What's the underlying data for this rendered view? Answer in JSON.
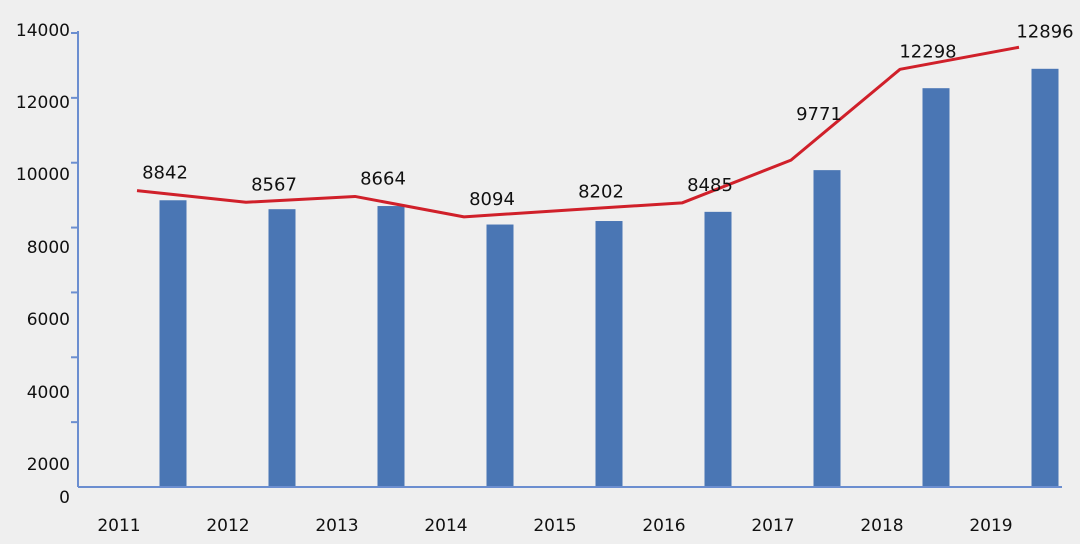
{
  "chart_data": {
    "type": "bar",
    "categories": [
      "2011",
      "2012",
      "2013",
      "2014",
      "2015",
      "2016",
      "2017",
      "2018",
      "2019"
    ],
    "values": [
      8842,
      8567,
      8664,
      8094,
      8202,
      8485,
      9771,
      12298,
      12896
    ],
    "line_values": [
      9140,
      8780,
      8960,
      8330,
      8550,
      8760,
      10080,
      12880,
      13560
    ],
    "ylim": [
      0,
      14000
    ],
    "yticks": [
      0,
      2000,
      4000,
      6000,
      8000,
      10000,
      12000,
      14000
    ],
    "ytick_labels": [
      "0",
      "2000",
      "4000",
      "6000",
      "8000",
      "10000",
      "12000",
      "14000"
    ],
    "title": "",
    "xlabel": "",
    "ylabel": "",
    "grid": false,
    "bar_color": "#4a76b4",
    "line_color": "#d0202a",
    "axis_color": "#6b8ed0"
  }
}
